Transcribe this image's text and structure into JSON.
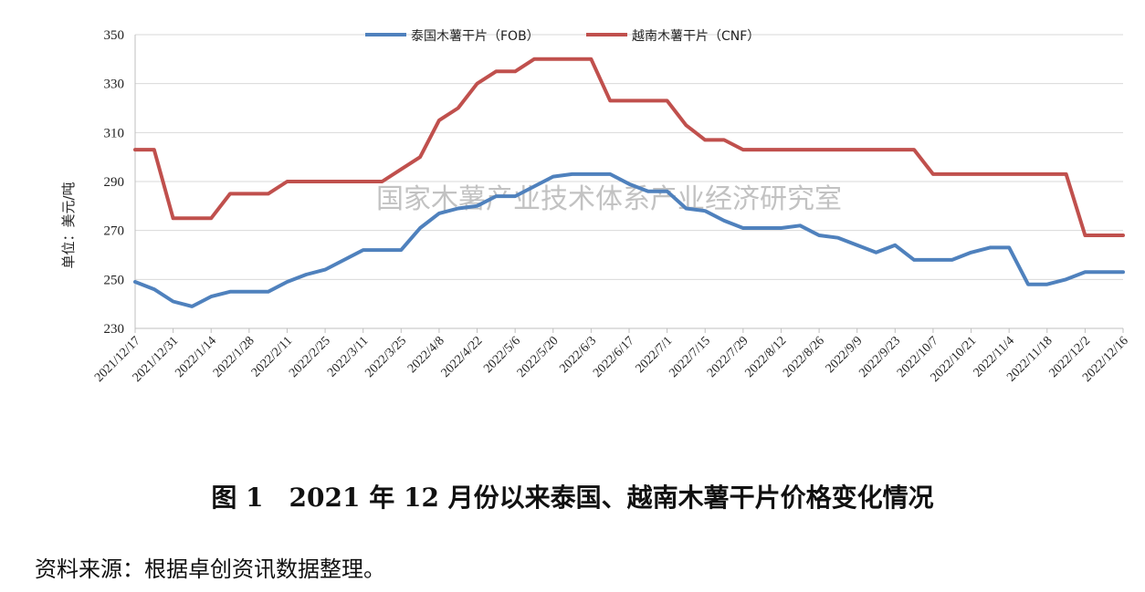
{
  "caption": "图 1　2021 年 12 月份以来泰国、越南木薯干片价格变化情况",
  "source": "资料来源：根据卓创资讯数据整理。",
  "watermark": "国家木薯产业技术体系产业经济研究室",
  "chart_data": {
    "type": "line",
    "ylabel": "单位：美元/吨",
    "ylim": [
      230,
      350
    ],
    "yticks": [
      230,
      250,
      270,
      290,
      310,
      330,
      350
    ],
    "legend_position": "top-center",
    "grid": "horizontal",
    "x_tick_labels": [
      "2021/12/17",
      "2021/12/31",
      "2022/1/14",
      "2022/1/28",
      "2022/2/11",
      "2022/2/25",
      "2022/3/11",
      "2022/3/25",
      "2022/4/8",
      "2022/4/22",
      "2022/5/6",
      "2022/5/20",
      "2022/6/3",
      "2022/6/17",
      "2022/7/1",
      "2022/7/15",
      "2022/7/29",
      "2022/8/12",
      "2022/8/26",
      "2022/9/9",
      "2022/9/23",
      "2022/10/7",
      "2022/10/21",
      "2022/11/4",
      "2022/11/18",
      "2022/12/2",
      "2022/12/16"
    ],
    "x": [
      "2021/12/17",
      "2021/12/24",
      "2021/12/31",
      "2022/1/7",
      "2022/1/14",
      "2022/1/21",
      "2022/1/28",
      "2022/2/4",
      "2022/2/11",
      "2022/2/18",
      "2022/2/25",
      "2022/3/4",
      "2022/3/11",
      "2022/3/18",
      "2022/3/25",
      "2022/4/1",
      "2022/4/8",
      "2022/4/15",
      "2022/4/22",
      "2022/4/29",
      "2022/5/6",
      "2022/5/13",
      "2022/5/20",
      "2022/5/27",
      "2022/6/3",
      "2022/6/10",
      "2022/6/17",
      "2022/6/24",
      "2022/7/1",
      "2022/7/8",
      "2022/7/15",
      "2022/7/22",
      "2022/7/29",
      "2022/8/5",
      "2022/8/12",
      "2022/8/19",
      "2022/8/26",
      "2022/9/2",
      "2022/9/9",
      "2022/9/16",
      "2022/9/23",
      "2022/9/30",
      "2022/10/7",
      "2022/10/14",
      "2022/10/21",
      "2022/10/28",
      "2022/11/4",
      "2022/11/11",
      "2022/11/18",
      "2022/11/25",
      "2022/12/2",
      "2022/12/9",
      "2022/12/16"
    ],
    "series": [
      {
        "name": "泰国木薯干片（FOB）",
        "color": "#4f81bd",
        "values": [
          249,
          246,
          241,
          239,
          243,
          245,
          245,
          245,
          249,
          252,
          254,
          258,
          262,
          262,
          262,
          271,
          277,
          279,
          280,
          284,
          284,
          288,
          292,
          293,
          293,
          293,
          289,
          286,
          286,
          279,
          278,
          274,
          271,
          271,
          271,
          272,
          268,
          267,
          264,
          261,
          264,
          258,
          258,
          258,
          261,
          263,
          263,
          248,
          248,
          250,
          253,
          253,
          253
        ]
      },
      {
        "name": "越南木薯干片（CNF）",
        "color": "#c0504d",
        "values": [
          303,
          303,
          275,
          275,
          275,
          285,
          285,
          285,
          290,
          290,
          290,
          290,
          290,
          290,
          295,
          300,
          315,
          320,
          330,
          335,
          335,
          340,
          340,
          340,
          340,
          323,
          323,
          323,
          323,
          313,
          307,
          307,
          303,
          303,
          303,
          303,
          303,
          303,
          303,
          303,
          303,
          303,
          293,
          293,
          293,
          293,
          293,
          293,
          293,
          293,
          268,
          268,
          268
        ]
      }
    ]
  }
}
